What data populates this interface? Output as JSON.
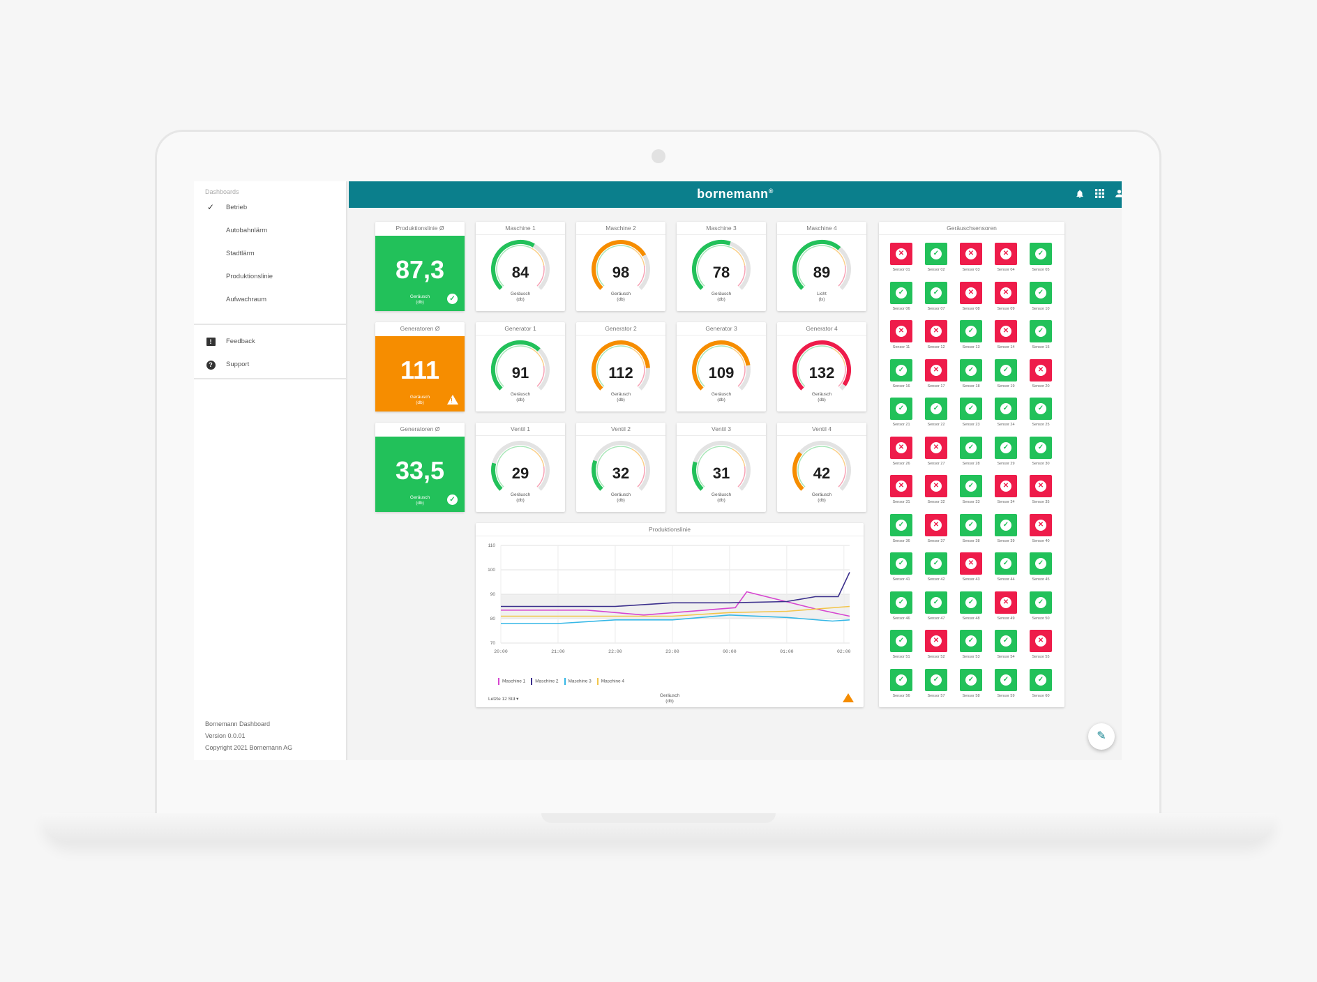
{
  "sidebar": {
    "title": "Dashboards",
    "items": [
      {
        "label": "Betrieb",
        "active": true
      },
      {
        "label": "Autobahnlärm"
      },
      {
        "label": "Stadtlärm"
      },
      {
        "label": "Produktionslinie"
      },
      {
        "label": "Aufwachraum"
      }
    ],
    "secondary": [
      {
        "label": "Feedback",
        "icon": "feedback-icon"
      },
      {
        "label": "Support",
        "icon": "help-icon"
      }
    ],
    "footer": [
      "Bornemann Dashboard",
      "Version 0.0.01",
      "Copyright 2021 Bornemann AG"
    ]
  },
  "header": {
    "brand": "bornemann",
    "brand_mark": "®",
    "icons": [
      "bell-icon",
      "apps-grid-icon",
      "account-icon"
    ],
    "color": "#0b7f8c"
  },
  "colors": {
    "green": "#22c15a",
    "orange": "#f68d00",
    "red": "#ee1c4a",
    "track": "#e3e3e3"
  },
  "averages": [
    {
      "title": "Produktionslinie Ø",
      "value": "87,3",
      "unit": "Geräusch",
      "unit2": "(db)",
      "status": "ok",
      "color": "#22c15a"
    },
    {
      "title": "Generatoren Ø",
      "value": "111",
      "unit": "Geräusch",
      "unit2": "(db)",
      "status": "warning",
      "color": "#f68d00"
    },
    {
      "title": "Generatoren Ø",
      "value": "33,5",
      "unit": "Geräusch",
      "unit2": "(db)",
      "status": "ok",
      "color": "#22c15a"
    }
  ],
  "gauges": [
    {
      "title": "Maschine 1",
      "value": 84,
      "unit": "Geräusch",
      "unit2": "(db)",
      "level": 0.61,
      "color": "#22c15a"
    },
    {
      "title": "Maschine 2",
      "value": 98,
      "unit": "Geräusch",
      "unit2": "(db)",
      "level": 0.72,
      "color": "#f68d00"
    },
    {
      "title": "Maschine 3",
      "value": 78,
      "unit": "Geräusch",
      "unit2": "(db)",
      "level": 0.57,
      "color": "#22c15a"
    },
    {
      "title": "Maschine 4",
      "value": 89,
      "unit": "Licht",
      "unit2": "(lx)",
      "level": 0.65,
      "color": "#22c15a"
    },
    {
      "title": "Generator 1",
      "value": 91,
      "unit": "Geräusch",
      "unit2": "(db)",
      "level": 0.66,
      "color": "#22c15a"
    },
    {
      "title": "Generator 2",
      "value": 112,
      "unit": "Geräusch",
      "unit2": "(db)",
      "level": 0.82,
      "color": "#f68d00"
    },
    {
      "title": "Generator 3",
      "value": 109,
      "unit": "Geräusch",
      "unit2": "(db)",
      "level": 0.8,
      "color": "#f68d00"
    },
    {
      "title": "Generator 4",
      "value": 132,
      "unit": "Geräusch",
      "unit2": "(db)",
      "level": 0.96,
      "color": "#ee1c4a"
    },
    {
      "title": "Ventil 1",
      "value": 29,
      "unit": "Geräusch",
      "unit2": "(db)",
      "level": 0.22,
      "color": "#22c15a"
    },
    {
      "title": "Ventil 2",
      "value": 32,
      "unit": "Geräusch",
      "unit2": "(db)",
      "level": 0.24,
      "color": "#22c15a"
    },
    {
      "title": "Ventil 3",
      "value": 31,
      "unit": "Geräusch",
      "unit2": "(db)",
      "level": 0.23,
      "color": "#22c15a"
    },
    {
      "title": "Ventil 4",
      "value": 42,
      "unit": "Geräusch",
      "unit2": "(db)",
      "level": 0.31,
      "color": "#f68d00"
    }
  ],
  "chart": {
    "title": "Produktionslinie",
    "range_selector": "Letzte 12 Std",
    "unit": "Geräusch",
    "unit2": "(db)"
  },
  "chart_data": {
    "type": "line",
    "title": "Produktionslinie",
    "x": [
      "20:00",
      "21:00",
      "22:00",
      "23:00",
      "00:00",
      "01:00",
      "02:00"
    ],
    "yticks": [
      70,
      80,
      90,
      100,
      110
    ],
    "ylim": [
      70,
      110
    ],
    "ylabel": "Geräusch (db)",
    "grid": true,
    "legend": "bottom-left",
    "series": [
      {
        "name": "Maschine 1",
        "color": "#d645d0",
        "x": [
          0,
          1.5,
          2.5,
          4.1,
          4.3,
          5.5,
          6.1
        ],
        "values": [
          83.5,
          83.5,
          81.5,
          84.5,
          91.0,
          84.0,
          81.0
        ]
      },
      {
        "name": "Maschine 2",
        "color": "#3b2f8c",
        "x": [
          0,
          1,
          2,
          3,
          4,
          5,
          5.5,
          5.9,
          6.1
        ],
        "values": [
          85,
          85,
          85,
          86.5,
          86.5,
          87.0,
          89.0,
          89.0,
          99.0
        ]
      },
      {
        "name": "Maschine 3",
        "color": "#35b7e6",
        "x": [
          0,
          1,
          2,
          3,
          4,
          5,
          5.8,
          6.1
        ],
        "values": [
          78,
          78,
          79.5,
          79.5,
          81.5,
          80.5,
          79.0,
          79.5
        ]
      },
      {
        "name": "Maschine 4",
        "color": "#f2c54a",
        "x": [
          0,
          1,
          2,
          3,
          4,
          5,
          6.1
        ],
        "values": [
          81.0,
          81.0,
          81.0,
          81.0,
          82.5,
          83.0,
          85.0
        ]
      }
    ]
  },
  "sensors": {
    "title": "Geräuschsensoren",
    "items": [
      {
        "label": "Sensor 01",
        "ok": false
      },
      {
        "label": "Sensor 02",
        "ok": true
      },
      {
        "label": "Sensor 03",
        "ok": false
      },
      {
        "label": "Sensor 04",
        "ok": false
      },
      {
        "label": "Sensor 05",
        "ok": true
      },
      {
        "label": "Sensor 06",
        "ok": true
      },
      {
        "label": "Sensor 07",
        "ok": true
      },
      {
        "label": "Sensor 08",
        "ok": false
      },
      {
        "label": "Sensor 09",
        "ok": false
      },
      {
        "label": "Sensor 10",
        "ok": true
      },
      {
        "label": "Sensor 11",
        "ok": false
      },
      {
        "label": "Sensor 12",
        "ok": false
      },
      {
        "label": "Sensor 13",
        "ok": true
      },
      {
        "label": "Sensor 14",
        "ok": false
      },
      {
        "label": "Sensor 15",
        "ok": true
      },
      {
        "label": "Sensor 16",
        "ok": true
      },
      {
        "label": "Sensor 17",
        "ok": false
      },
      {
        "label": "Sensor 18",
        "ok": true
      },
      {
        "label": "Sensor 19",
        "ok": true
      },
      {
        "label": "Sensor 20",
        "ok": false
      },
      {
        "label": "Sensor 21",
        "ok": true
      },
      {
        "label": "Sensor 22",
        "ok": true
      },
      {
        "label": "Sensor 23",
        "ok": true
      },
      {
        "label": "Sensor 24",
        "ok": true
      },
      {
        "label": "Sensor 25",
        "ok": true
      },
      {
        "label": "Sensor 26",
        "ok": false
      },
      {
        "label": "Sensor 27",
        "ok": false
      },
      {
        "label": "Sensor 28",
        "ok": true
      },
      {
        "label": "Sensor 29",
        "ok": true
      },
      {
        "label": "Sensor 30",
        "ok": true
      },
      {
        "label": "Sensor 31",
        "ok": false
      },
      {
        "label": "Sensor 32",
        "ok": false
      },
      {
        "label": "Sensor 33",
        "ok": true
      },
      {
        "label": "Sensor 34",
        "ok": false
      },
      {
        "label": "Sensor 35",
        "ok": false
      },
      {
        "label": "Sensor 36",
        "ok": true
      },
      {
        "label": "Sensor 37",
        "ok": false
      },
      {
        "label": "Sensor 38",
        "ok": true
      },
      {
        "label": "Sensor 39",
        "ok": true
      },
      {
        "label": "Sensor 40",
        "ok": false
      },
      {
        "label": "Sensor 41",
        "ok": true
      },
      {
        "label": "Sensor 42",
        "ok": true
      },
      {
        "label": "Sensor 43",
        "ok": false
      },
      {
        "label": "Sensor 44",
        "ok": true
      },
      {
        "label": "Sensor 45",
        "ok": true
      },
      {
        "label": "Sensor 46",
        "ok": true
      },
      {
        "label": "Sensor 47",
        "ok": true
      },
      {
        "label": "Sensor 48",
        "ok": true
      },
      {
        "label": "Sensor 49",
        "ok": false
      },
      {
        "label": "Sensor 50",
        "ok": true
      },
      {
        "label": "Sensor 51",
        "ok": true
      },
      {
        "label": "Sensor 52",
        "ok": false
      },
      {
        "label": "Sensor 53",
        "ok": true
      },
      {
        "label": "Sensor 54",
        "ok": true
      },
      {
        "label": "Sensor 55",
        "ok": false
      },
      {
        "label": "Sensor 56",
        "ok": true
      },
      {
        "label": "Sensor 57",
        "ok": true
      },
      {
        "label": "Sensor 58",
        "ok": true
      },
      {
        "label": "Sensor 59",
        "ok": true
      },
      {
        "label": "Sensor 60",
        "ok": true
      }
    ]
  },
  "fab": {
    "icon": "pencil-icon"
  }
}
